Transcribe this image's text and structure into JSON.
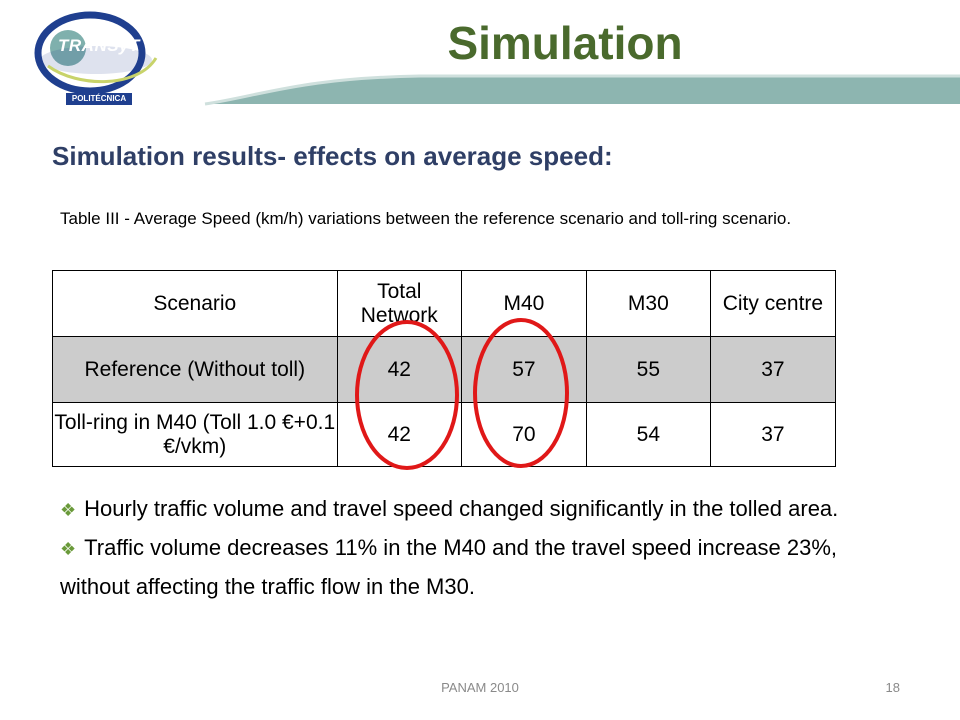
{
  "header": {
    "title": "Simulation",
    "logo": {
      "main": "TRANSyT",
      "sub": "POLITÉCNICA"
    },
    "colors": {
      "band": "#8db5b0",
      "title": "#4a6a2d"
    }
  },
  "subtitle": "Simulation results- effects on average speed:",
  "table_caption": "Table III - Average Speed (km/h) variations between the reference scenario and toll-ring scenario.",
  "table": {
    "headers": [
      "Scenario",
      "Total Network",
      "M40",
      "M30",
      "City centre"
    ],
    "rows": [
      {
        "scenario": "Reference (Without toll)",
        "values": [
          "42",
          "57",
          "55",
          "37"
        ]
      },
      {
        "scenario": "Toll-ring in M40 (Toll 1.0 €+0.1 €/vkm)",
        "values": [
          "42",
          "70",
          "54",
          "37"
        ]
      }
    ]
  },
  "bullets": [
    "Hourly traffic volume and travel speed changed significantly in the tolled area.",
    "Traffic volume decreases 11% in the M40 and the travel speed increase 23%, without affecting the traffic flow in the M30."
  ],
  "footer": {
    "center": "PANAM 2010",
    "page": "18"
  }
}
